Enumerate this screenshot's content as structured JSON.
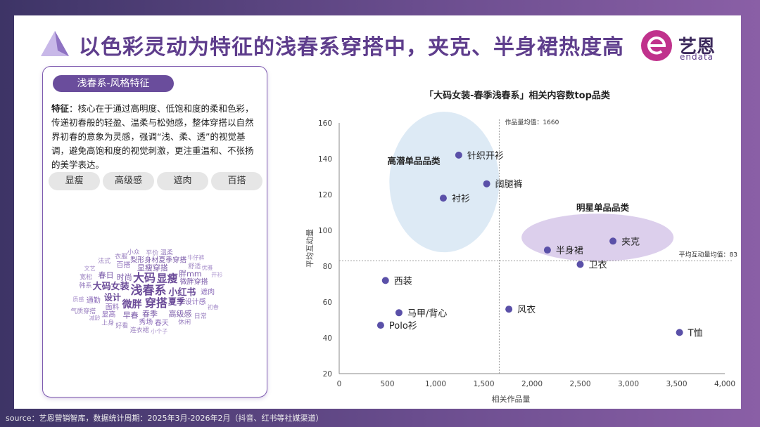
{
  "title": "以色彩灵动为特征的浅春系穿搭中，夹克、半身裙热度高",
  "logo": {
    "name": "艺恩",
    "sub": "endata"
  },
  "card": {
    "tag": "浅春系-风格特征",
    "desc_label": "特征",
    "desc_text": "：核心在于通过高明度、低饱和度的柔和色彩，传递初春般的轻盈、温柔与松弛感，整体穿搭以自然界初春的意象为灵感，强调“浅、柔、透”的视觉基调，避免高饱和度的视觉刺激，更注重温和、不张扬的美学表达。",
    "chips": [
      "显瘦",
      "高级感",
      "遮肉",
      "百搭"
    ],
    "wordcloud": [
      {
        "t": "浅春系",
        "s": 17,
        "c": "#6a4a98"
      },
      {
        "t": "大码",
        "s": 16,
        "c": "#6a4a98"
      },
      {
        "t": "穿搭",
        "s": 16,
        "c": "#6a4a98"
      },
      {
        "t": "显瘦",
        "s": 15,
        "c": "#6a4a98"
      },
      {
        "t": "微胖",
        "s": 14,
        "c": "#6a4a98"
      },
      {
        "t": "大码女装",
        "s": 13,
        "c": "#6a4a98"
      },
      {
        "t": "小红书",
        "s": 13,
        "c": "#6a4a98"
      },
      {
        "t": "夏季",
        "s": 12,
        "c": "#6a4a98"
      },
      {
        "t": "设计",
        "s": 12,
        "c": "#6a4a98"
      },
      {
        "t": "时尚",
        "s": 11,
        "c": "#7a5aa8"
      },
      {
        "t": "显瘦穿搭",
        "s": 11,
        "c": "#7a5aa8"
      },
      {
        "t": "春季",
        "s": 11,
        "c": "#7a5aa8"
      },
      {
        "t": "梨形身材夏季穿搭",
        "s": 10,
        "c": "#7a5aa8"
      },
      {
        "t": "微胖穿搭",
        "s": 10,
        "c": "#7a5aa8"
      },
      {
        "t": "早春",
        "s": 11,
        "c": "#7a5aa8"
      },
      {
        "t": "胖mm",
        "s": 11,
        "c": "#7a5aa8"
      },
      {
        "t": "高级感",
        "s": 11,
        "c": "#7a5aa8"
      },
      {
        "t": "面料",
        "s": 10,
        "c": "#8a6ab8"
      },
      {
        "t": "春日",
        "s": 11,
        "c": "#7a5aa8"
      },
      {
        "t": "百搭",
        "s": 10,
        "c": "#8a6ab8"
      },
      {
        "t": "设计感",
        "s": 10,
        "c": "#8a6ab8"
      },
      {
        "t": "秀场",
        "s": 10,
        "c": "#8a6ab8"
      },
      {
        "t": "春天",
        "s": 10,
        "c": "#8a6ab8"
      },
      {
        "t": "显高",
        "s": 10,
        "c": "#8a6ab8"
      },
      {
        "t": "通勤",
        "s": 10,
        "c": "#8a6ab8"
      },
      {
        "t": "遮肉",
        "s": 10,
        "c": "#8a6ab8"
      },
      {
        "t": "舒适",
        "s": 9,
        "c": "#9a80c0"
      },
      {
        "t": "韩系",
        "s": 9,
        "c": "#9a80c0"
      },
      {
        "t": "衣服",
        "s": 9,
        "c": "#9a80c0"
      },
      {
        "t": "平价",
        "s": 9,
        "c": "#9a80c0"
      },
      {
        "t": "休闲",
        "s": 9,
        "c": "#9a80c0"
      },
      {
        "t": "好看",
        "s": 9,
        "c": "#9a80c0"
      },
      {
        "t": "宽松",
        "s": 9,
        "c": "#9a80c0"
      },
      {
        "t": "法式",
        "s": 9,
        "c": "#9a80c0"
      },
      {
        "t": "连衣裙",
        "s": 9,
        "c": "#9a80c0"
      },
      {
        "t": "小众",
        "s": 9,
        "c": "#9a80c0"
      },
      {
        "t": "温柔",
        "s": 9,
        "c": "#9a80c0"
      },
      {
        "t": "日常",
        "s": 9,
        "c": "#9a80c0"
      },
      {
        "t": "上身",
        "s": 9,
        "c": "#9a80c0"
      },
      {
        "t": "气质穿搭",
        "s": 9,
        "c": "#9a80c0"
      },
      {
        "t": "文艺",
        "s": 8,
        "c": "#a890cc"
      },
      {
        "t": "优雅",
        "s": 8,
        "c": "#a890cc"
      },
      {
        "t": "小个子",
        "s": 8,
        "c": "#a890cc"
      },
      {
        "t": "牛仔裤",
        "s": 8,
        "c": "#a890cc"
      },
      {
        "t": "初春",
        "s": 8,
        "c": "#a890cc"
      },
      {
        "t": "减龄",
        "s": 8,
        "c": "#a890cc"
      },
      {
        "t": "质感",
        "s": 8,
        "c": "#a890cc"
      },
      {
        "t": "开衫",
        "s": 8,
        "c": "#a890cc"
      }
    ]
  },
  "chart_data": {
    "type": "scatter",
    "title": "「大码女装-春季浅春系」相关内容数top品类",
    "xlabel": "相关作品量",
    "ylabel": "平均互动量",
    "xlim": [
      0,
      4000
    ],
    "ylim": [
      20,
      160
    ],
    "xticks": [
      0,
      500,
      1000,
      1500,
      2000,
      2500,
      3000,
      3500,
      4000
    ],
    "xtick_labels": [
      "0",
      "500",
      "1,000",
      "1,500",
      "2,000",
      "2,500",
      "3,000",
      "3,500",
      "4,000"
    ],
    "yticks": [
      20,
      40,
      60,
      80,
      100,
      120,
      140,
      160
    ],
    "points": [
      {
        "label": "针织开衫",
        "x": 1240,
        "y": 142
      },
      {
        "label": "阔腿裤",
        "x": 1530,
        "y": 126
      },
      {
        "label": "衬衫",
        "x": 1080,
        "y": 118
      },
      {
        "label": "夹克",
        "x": 2840,
        "y": 94
      },
      {
        "label": "半身裙",
        "x": 2160,
        "y": 89
      },
      {
        "label": "卫衣",
        "x": 2500,
        "y": 81
      },
      {
        "label": "西装",
        "x": 480,
        "y": 72
      },
      {
        "label": "风衣",
        "x": 1760,
        "y": 56
      },
      {
        "label": "马甲/背心",
        "x": 620,
        "y": 54
      },
      {
        "label": "Polo衫",
        "x": 430,
        "y": 47
      },
      {
        "label": "T恤",
        "x": 3530,
        "y": 43
      }
    ],
    "x_mean": 1660,
    "y_mean": 83,
    "x_mean_label": "作品量均值：1660",
    "y_mean_label": "平均互动量均值：83",
    "clusters": [
      {
        "label": "高潜单品品类"
      },
      {
        "label": "明星单品品类"
      }
    ]
  },
  "source": "source：艺恩营销智库，数据统计周期：2025年3月-2026年2月（抖音、红书等社媒渠道）"
}
